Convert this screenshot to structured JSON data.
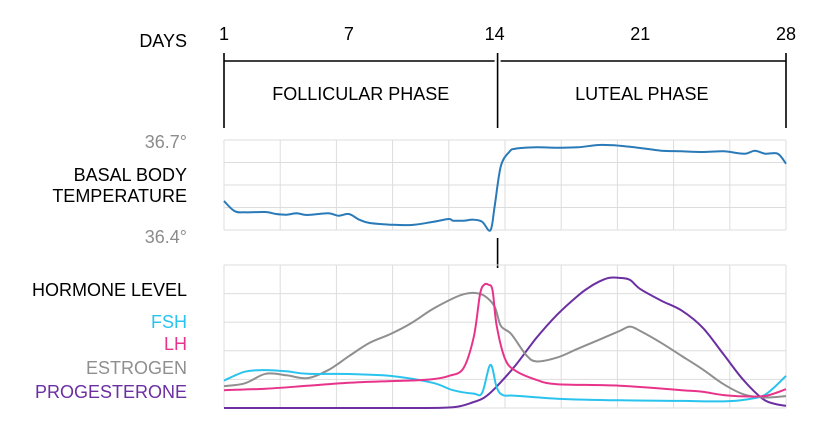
{
  "chart_data": [
    {
      "type": "line",
      "title": "",
      "xlabel": "DAYS",
      "x_ticks": [
        1,
        7,
        14,
        21,
        28
      ],
      "phases": [
        {
          "label": "FOLLICULAR PHASE",
          "start": 1,
          "end": 14
        },
        {
          "label": "LUTEAL PHASE",
          "start": 14,
          "end": 28
        }
      ],
      "ylabel": "BASAL BODY TEMPERATURE",
      "y_tick_labels": [
        "36.7°",
        "36.4°"
      ],
      "ylim": [
        36.4,
        36.7
      ],
      "grid": true,
      "series": [
        {
          "name": "",
          "color": "#2a7ab8",
          "x": [
            1,
            1.5,
            2,
            3,
            3.5,
            4,
            4.5,
            5,
            6,
            6.5,
            7,
            7.5,
            8,
            9,
            10,
            11,
            11.8,
            12,
            12.5,
            13,
            13.4,
            13.8,
            14,
            14.3,
            14.7,
            15,
            16,
            17,
            18,
            19,
            20,
            21,
            22,
            23,
            24,
            25,
            26,
            26.5,
            27,
            27.6,
            28
          ],
          "values": [
            36.499,
            36.469,
            36.465,
            36.466,
            36.46,
            36.458,
            36.462,
            36.457,
            36.462,
            36.455,
            36.46,
            36.443,
            36.433,
            36.428,
            36.427,
            36.436,
            36.445,
            36.44,
            36.44,
            36.443,
            36.437,
            36.411,
            36.482,
            36.603,
            36.646,
            36.656,
            36.66,
            36.659,
            36.66,
            36.667,
            36.665,
            36.658,
            36.65,
            36.648,
            36.646,
            36.648,
            36.641,
            36.65,
            36.641,
            36.641,
            36.611
          ]
        }
      ]
    },
    {
      "type": "line",
      "title": "",
      "ylabel": "HORMONE LEVEL",
      "xlim": [
        1,
        28
      ],
      "ylim": [
        0,
        1
      ],
      "grid": true,
      "legend": "left",
      "series": [
        {
          "name": "FSH",
          "color": "#29c3ee",
          "x": [
            1,
            2,
            3,
            4,
            5,
            7,
            9,
            11,
            12,
            13,
            13.4,
            13.8,
            14.1,
            14.4,
            15,
            17,
            20,
            23,
            25,
            26,
            27,
            28
          ],
          "values": [
            0.2,
            0.265,
            0.277,
            0.268,
            0.25,
            0.248,
            0.234,
            0.185,
            0.13,
            0.105,
            0.11,
            0.315,
            0.15,
            0.094,
            0.09,
            0.068,
            0.056,
            0.052,
            0.048,
            0.06,
            0.098,
            0.234
          ]
        },
        {
          "name": "LH",
          "color": "#e8338a",
          "x": [
            1,
            3,
            5,
            7,
            9,
            10,
            11,
            11.8,
            12.5,
            13,
            13.3,
            13.5,
            13.7,
            13.9,
            14.1,
            14.5,
            15,
            16,
            17,
            20,
            23,
            24,
            25,
            26,
            27,
            28
          ],
          "values": [
            0.13,
            0.141,
            0.162,
            0.184,
            0.196,
            0.201,
            0.21,
            0.234,
            0.29,
            0.52,
            0.83,
            0.9,
            0.9,
            0.86,
            0.6,
            0.36,
            0.272,
            0.206,
            0.174,
            0.163,
            0.13,
            0.118,
            0.094,
            0.085,
            0.088,
            0.137
          ]
        },
        {
          "name": "ESTROGEN",
          "color": "#8f8f8f",
          "x": [
            1,
            2,
            3,
            4,
            5,
            6,
            7,
            8,
            9,
            10,
            11,
            12,
            12.5,
            13,
            13.5,
            14,
            14.3,
            14.8,
            15.5,
            16,
            17,
            18,
            19,
            20,
            20.5,
            21,
            22,
            23,
            24,
            25,
            26,
            27,
            28
          ],
          "values": [
            0.16,
            0.18,
            0.25,
            0.239,
            0.218,
            0.276,
            0.378,
            0.476,
            0.54,
            0.62,
            0.72,
            0.8,
            0.83,
            0.84,
            0.82,
            0.74,
            0.6,
            0.54,
            0.39,
            0.34,
            0.368,
            0.433,
            0.497,
            0.562,
            0.594,
            0.562,
            0.476,
            0.379,
            0.282,
            0.174,
            0.098,
            0.077,
            0.087
          ]
        },
        {
          "name": "PROGESTERONE",
          "color": "#6b2fa2",
          "x": [
            1,
            4,
            7,
            10,
            12,
            13,
            13.5,
            14,
            15,
            16,
            17,
            18,
            18.5,
            19,
            19.5,
            20,
            20.5,
            21,
            22,
            23,
            24,
            25,
            26,
            27,
            28
          ],
          "values": [
            0,
            0,
            0,
            0,
            0.005,
            0.044,
            0.076,
            0.141,
            0.31,
            0.51,
            0.68,
            0.82,
            0.877,
            0.921,
            0.95,
            0.95,
            0.935,
            0.868,
            0.784,
            0.71,
            0.586,
            0.391,
            0.196,
            0.055,
            0.015
          ]
        }
      ]
    }
  ]
}
